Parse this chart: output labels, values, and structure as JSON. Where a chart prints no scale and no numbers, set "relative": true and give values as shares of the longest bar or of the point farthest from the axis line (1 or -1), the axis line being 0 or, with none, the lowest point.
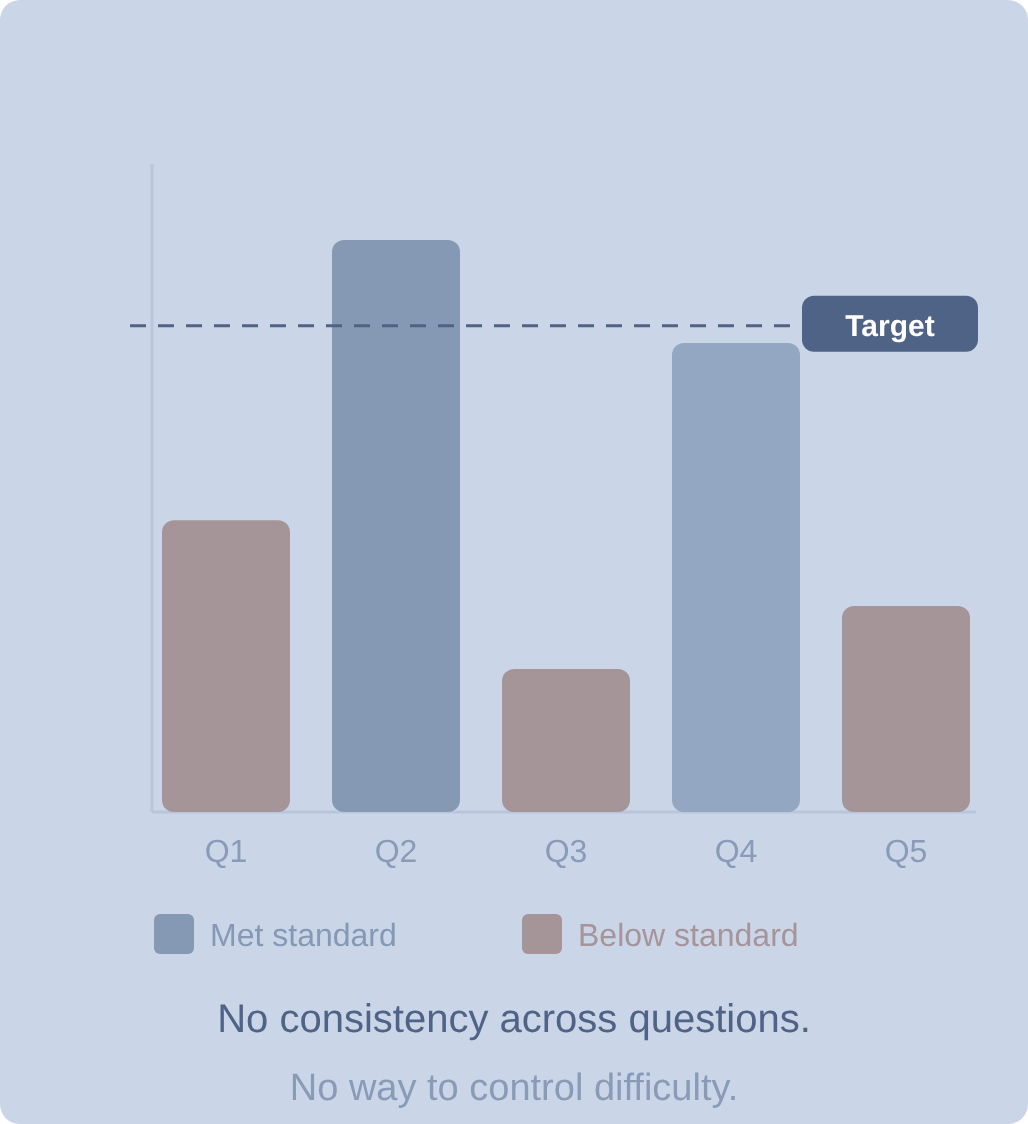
{
  "chart_data": {
    "type": "bar",
    "relative": true,
    "categories": [
      "Q1",
      "Q2",
      "Q3",
      "Q4",
      "Q5"
    ],
    "series": [
      {
        "name": "Met standard",
        "color": "#8599b5",
        "colors": [
          null,
          "#8599b5",
          null,
          "#93a6c2",
          null
        ],
        "values": [
          null,
          1,
          null,
          0.82,
          null
        ]
      },
      {
        "name": "Below standard",
        "color": "#a59599",
        "values": [
          0.51,
          null,
          0.25,
          null,
          0.36
        ]
      }
    ],
    "ref_lines": [
      {
        "axis": "y",
        "value": 0.85,
        "label": "Target",
        "color": "#4f6387",
        "line_style": "dashed"
      }
    ],
    "legend": "bottom",
    "annotations": [
      "No consistency across questions.",
      "No way to control difficulty."
    ]
  }
}
